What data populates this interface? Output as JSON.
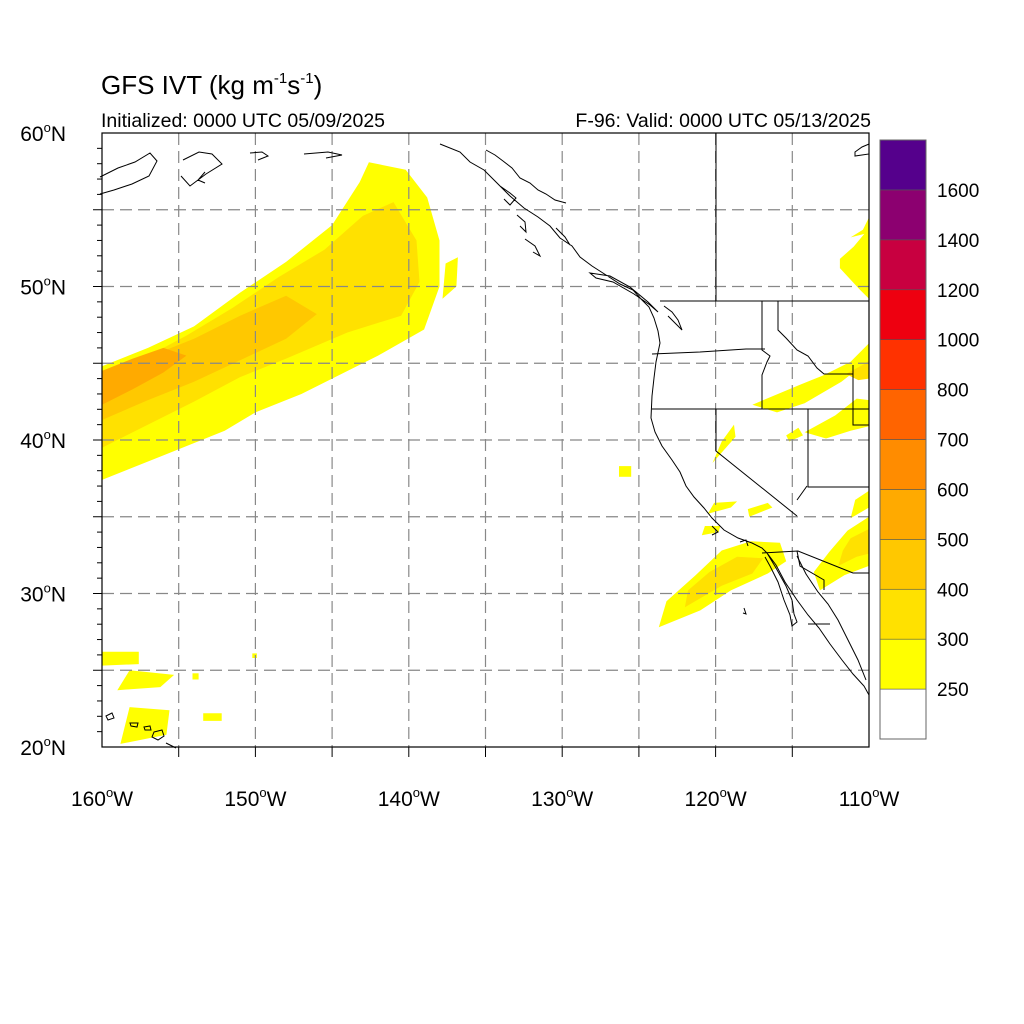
{
  "title": {
    "main": "GFS IVT",
    "units_prefix": " (kg m",
    "units_exp1": "-1",
    "units_mid": "s",
    "units_exp2": "-1",
    "units_suffix": ")"
  },
  "initialized": "Initialized: 0000 UTC 05/09/2025",
  "valid": "F-96: Valid: 0000 UTC 05/13/2025",
  "map": {
    "lon_range": [
      -160,
      -110
    ],
    "lat_range": [
      20,
      60
    ],
    "lat_labels": [
      {
        "value": 60,
        "text": "60",
        "hemi": "N"
      },
      {
        "value": 50,
        "text": "50",
        "hemi": "N"
      },
      {
        "value": 40,
        "text": "40",
        "hemi": "N"
      },
      {
        "value": 30,
        "text": "30",
        "hemi": "N"
      },
      {
        "value": 20,
        "text": "20",
        "hemi": "N"
      }
    ],
    "lon_labels": [
      {
        "value": -160,
        "text": "160",
        "hemi": "W"
      },
      {
        "value": -150,
        "text": "150",
        "hemi": "W"
      },
      {
        "value": -140,
        "text": "140",
        "hemi": "W"
      },
      {
        "value": -130,
        "text": "130",
        "hemi": "W"
      },
      {
        "value": -120,
        "text": "120",
        "hemi": "W"
      },
      {
        "value": -110,
        "text": "110",
        "hemi": "W"
      }
    ],
    "grid": true,
    "grid_spacing_deg": 5
  },
  "colorbar": {
    "levels": [
      250,
      300,
      400,
      500,
      600,
      700,
      800,
      1000,
      1200,
      1400,
      1600
    ],
    "colors": [
      "#ffffff",
      "#ffff00",
      "#ffe100",
      "#ffc800",
      "#ffaa00",
      "#ff8c00",
      "#ff6400",
      "#ff3200",
      "#ee0010",
      "#c80040",
      "#8c0070",
      "#55008c"
    ]
  },
  "ivt_regions": [
    {
      "category": 1,
      "points": [
        [
          -160,
          37.4
        ],
        [
          -156,
          39
        ],
        [
          -152,
          40.6
        ],
        [
          -150,
          41.8
        ],
        [
          -147,
          43
        ],
        [
          -142,
          45.5
        ],
        [
          -139,
          47.2
        ],
        [
          -138,
          50
        ],
        [
          -138,
          53
        ],
        [
          -138.8,
          55.8
        ],
        [
          -140.2,
          57.6
        ],
        [
          -142.6,
          58.1
        ],
        [
          -143.2,
          56.8
        ],
        [
          -145,
          54
        ],
        [
          -148,
          51.6
        ],
        [
          -151,
          49.6
        ],
        [
          -154,
          47.4
        ],
        [
          -157,
          46
        ],
        [
          -160,
          44.8
        ]
      ]
    },
    {
      "category": 2,
      "points": [
        [
          -160,
          39.5
        ],
        [
          -157,
          41
        ],
        [
          -154,
          42.5
        ],
        [
          -151,
          44.1
        ],
        [
          -148,
          45.3
        ],
        [
          -144,
          47
        ],
        [
          -140.5,
          48.1
        ],
        [
          -139.3,
          50.3
        ],
        [
          -139.5,
          53
        ],
        [
          -141,
          55.5
        ],
        [
          -143,
          54.6
        ],
        [
          -145.5,
          52.4
        ],
        [
          -148.5,
          50.6
        ],
        [
          -151.5,
          48.6
        ],
        [
          -154.5,
          46.8
        ],
        [
          -157.5,
          45.2
        ],
        [
          -160,
          44.2
        ]
      ]
    },
    {
      "category": 3,
      "points": [
        [
          -160,
          41.3
        ],
        [
          -157,
          42.6
        ],
        [
          -154,
          43.8
        ],
        [
          -151,
          45.2
        ],
        [
          -148,
          46.6
        ],
        [
          -146,
          48.2
        ],
        [
          -148,
          49.4
        ],
        [
          -151,
          48.1
        ],
        [
          -154,
          46.6
        ],
        [
          -157,
          45.4
        ],
        [
          -160,
          44
        ]
      ]
    },
    {
      "category": 4,
      "points": [
        [
          -160,
          42.3
        ],
        [
          -158,
          43.3
        ],
        [
          -156,
          44.4
        ],
        [
          -154.5,
          45.5
        ],
        [
          -156,
          46
        ],
        [
          -158,
          45.3
        ],
        [
          -160,
          44.5
        ]
      ]
    },
    {
      "category": 1,
      "points": [
        [
          -137.8,
          49.2
        ],
        [
          -137.6,
          51.5
        ],
        [
          -136.8,
          51.9
        ],
        [
          -136.9,
          50
        ]
      ]
    },
    {
      "category": 1,
      "points": [
        [
          -123.7,
          27.8
        ],
        [
          -121,
          28.9
        ],
        [
          -119,
          30.2
        ],
        [
          -116.6,
          31.3
        ],
        [
          -115.4,
          32.1
        ],
        [
          -115.8,
          33.3
        ],
        [
          -117.7,
          33.4
        ],
        [
          -119.6,
          32.8
        ],
        [
          -121.3,
          31.2
        ],
        [
          -123.2,
          29.5
        ]
      ]
    },
    {
      "category": 2,
      "points": [
        [
          -122,
          29.1
        ],
        [
          -119.6,
          30.5
        ],
        [
          -117.6,
          31.3
        ],
        [
          -116.9,
          32.3
        ],
        [
          -118.6,
          32.4
        ],
        [
          -120.4,
          31.4
        ],
        [
          -121.8,
          30.2
        ]
      ]
    },
    {
      "category": 1,
      "points": [
        [
          -113.2,
          30.2
        ],
        [
          -111.6,
          31.2
        ],
        [
          -110,
          31.8
        ],
        [
          -110,
          35
        ],
        [
          -111.4,
          34.1
        ],
        [
          -112.6,
          32.7
        ],
        [
          -113.6,
          31.4
        ]
      ]
    },
    {
      "category": 2,
      "points": [
        [
          -112,
          31.8
        ],
        [
          -110.8,
          32.4
        ],
        [
          -110,
          32.6
        ],
        [
          -110,
          34.2
        ],
        [
          -111.2,
          33.6
        ],
        [
          -111.7,
          32.8
        ]
      ]
    },
    {
      "category": 1,
      "points": [
        [
          -111.2,
          34.9
        ],
        [
          -110,
          35.6
        ],
        [
          -110,
          36.7
        ],
        [
          -110.9,
          36.1
        ]
      ]
    },
    {
      "category": 1,
      "points": [
        [
          -120.2,
          38.5
        ],
        [
          -118.7,
          40.2
        ],
        [
          -118.8,
          41
        ],
        [
          -119.6,
          39.9
        ]
      ]
    },
    {
      "category": 1,
      "points": [
        [
          -117.8,
          35
        ],
        [
          -116.3,
          35.6
        ],
        [
          -116.6,
          35.9
        ],
        [
          -117.9,
          35.5
        ]
      ]
    },
    {
      "category": 1,
      "points": [
        [
          -117.6,
          42.3
        ],
        [
          -114.5,
          43.6
        ],
        [
          -113,
          44.2
        ],
        [
          -111.2,
          45.1
        ],
        [
          -110,
          46.3
        ],
        [
          -110,
          45.2
        ],
        [
          -111.8,
          43.8
        ],
        [
          -114.2,
          42.4
        ],
        [
          -116,
          41.8
        ]
      ]
    },
    {
      "category": 2,
      "points": [
        [
          -111.5,
          44.3
        ],
        [
          -110.4,
          44.9
        ],
        [
          -110,
          45.2
        ],
        [
          -110,
          44
        ],
        [
          -110.7,
          43.9
        ]
      ]
    },
    {
      "category": 1,
      "points": [
        [
          -114.2,
          40.5
        ],
        [
          -112.2,
          41.6
        ],
        [
          -110.8,
          42.7
        ],
        [
          -110,
          42.6
        ],
        [
          -110,
          40.9
        ],
        [
          -111.2,
          40.6
        ],
        [
          -112.8,
          40.1
        ]
      ]
    },
    {
      "category": 1,
      "points": [
        [
          -115.2,
          39.9
        ],
        [
          -114.3,
          40.3
        ],
        [
          -114.6,
          40.8
        ],
        [
          -115.4,
          40.3
        ]
      ]
    },
    {
      "category": 1,
      "points": [
        [
          -111.9,
          51.2
        ],
        [
          -110.6,
          49.8
        ],
        [
          -110,
          49.2
        ],
        [
          -110,
          53.8
        ],
        [
          -111,
          52.6
        ],
        [
          -111.9,
          51.8
        ]
      ]
    },
    {
      "category": 1,
      "points": [
        [
          -111.2,
          53.2
        ],
        [
          -110.4,
          53.7
        ],
        [
          -110,
          54.5
        ],
        [
          -110,
          53.5
        ]
      ]
    },
    {
      "category": 1,
      "points": [
        [
          -126.3,
          37.6
        ],
        [
          -125.5,
          37.6
        ],
        [
          -125.5,
          38.3
        ],
        [
          -126.3,
          38.3
        ]
      ]
    },
    {
      "category": 1,
      "points": [
        [
          -120.9,
          33.8
        ],
        [
          -119.8,
          34
        ],
        [
          -119.7,
          34.4
        ],
        [
          -120.7,
          34.4
        ]
      ]
    },
    {
      "category": 1,
      "points": [
        [
          -120.5,
          35.2
        ],
        [
          -119,
          35.6
        ],
        [
          -118.6,
          36
        ],
        [
          -120.1,
          35.9
        ]
      ]
    },
    {
      "category": 1,
      "points": [
        [
          -160,
          25.3
        ],
        [
          -157.6,
          25.4
        ],
        [
          -157.6,
          26.2
        ],
        [
          -160,
          26.2
        ]
      ]
    },
    {
      "category": 1,
      "points": [
        [
          -159,
          23.7
        ],
        [
          -156.2,
          23.9
        ],
        [
          -155.3,
          24.7
        ],
        [
          -158.2,
          25
        ]
      ]
    },
    {
      "category": 1,
      "points": [
        [
          -158.8,
          20.2
        ],
        [
          -155.8,
          20.8
        ],
        [
          -155.6,
          22.4
        ],
        [
          -158.2,
          22.6
        ]
      ]
    },
    {
      "category": 1,
      "points": [
        [
          -153.4,
          21.7
        ],
        [
          -152.2,
          21.7
        ],
        [
          -152.2,
          22.2
        ],
        [
          -153.4,
          22.2
        ]
      ]
    },
    {
      "category": 1,
      "points": [
        [
          -154.1,
          24.4
        ],
        [
          -153.7,
          24.4
        ],
        [
          -153.7,
          24.8
        ],
        [
          -154.1,
          24.8
        ]
      ]
    },
    {
      "category": 1,
      "points": [
        [
          -150.2,
          25.8
        ],
        [
          -149.9,
          25.8
        ],
        [
          -149.9,
          26.1
        ],
        [
          -150.2,
          26.1
        ]
      ]
    }
  ]
}
